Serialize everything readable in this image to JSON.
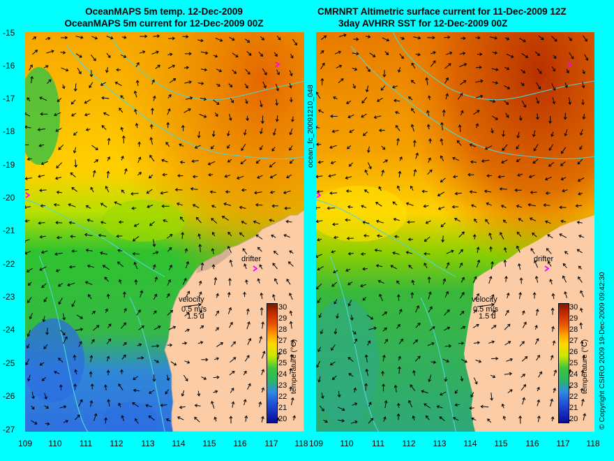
{
  "titles": {
    "left_line1": "OceanMAPS 5m temp. 12-Dec-2009",
    "left_line2": "OceanMAPS 5m current for 12-Dec-2009 00Z",
    "right_line1": "CMRNRT Altimetric surface current for 11-Dec-2009 12Z",
    "right_line2": "3day AVHRR SST for 12-Dec-2009 00Z"
  },
  "y_ticks": [
    "-15",
    "-16",
    "-17",
    "-18",
    "-19",
    "-20",
    "-21",
    "-22",
    "-23",
    "-24",
    "-25",
    "-26",
    "-27"
  ],
  "x_ticks": [
    "109",
    "110",
    "111",
    "112",
    "113",
    "114",
    "115",
    "116",
    "117",
    "118"
  ],
  "run_id": "ocean_fc_20091210_048",
  "copyright": "© Copyright CSIRO 2009   19-Dec-2009 09:42:30",
  "legend": {
    "velocity_label": "velocity",
    "velocity_scale": "0.5 m/s",
    "time_scale": "1.5 d",
    "drifter_label": "drifter",
    "colorbar_title": "temperature (°C)",
    "colorbar_ticks": [
      "30",
      "29",
      "28",
      "27",
      "26",
      "25",
      "24",
      "23",
      "22",
      "21",
      "20"
    ]
  },
  "colors": {
    "background": "#00ffff",
    "land": "#fccca6",
    "bathymetry_contour": "#4fd6d6",
    "drifter_marker": "#ff00ff",
    "streamlines": "#000000"
  }
}
